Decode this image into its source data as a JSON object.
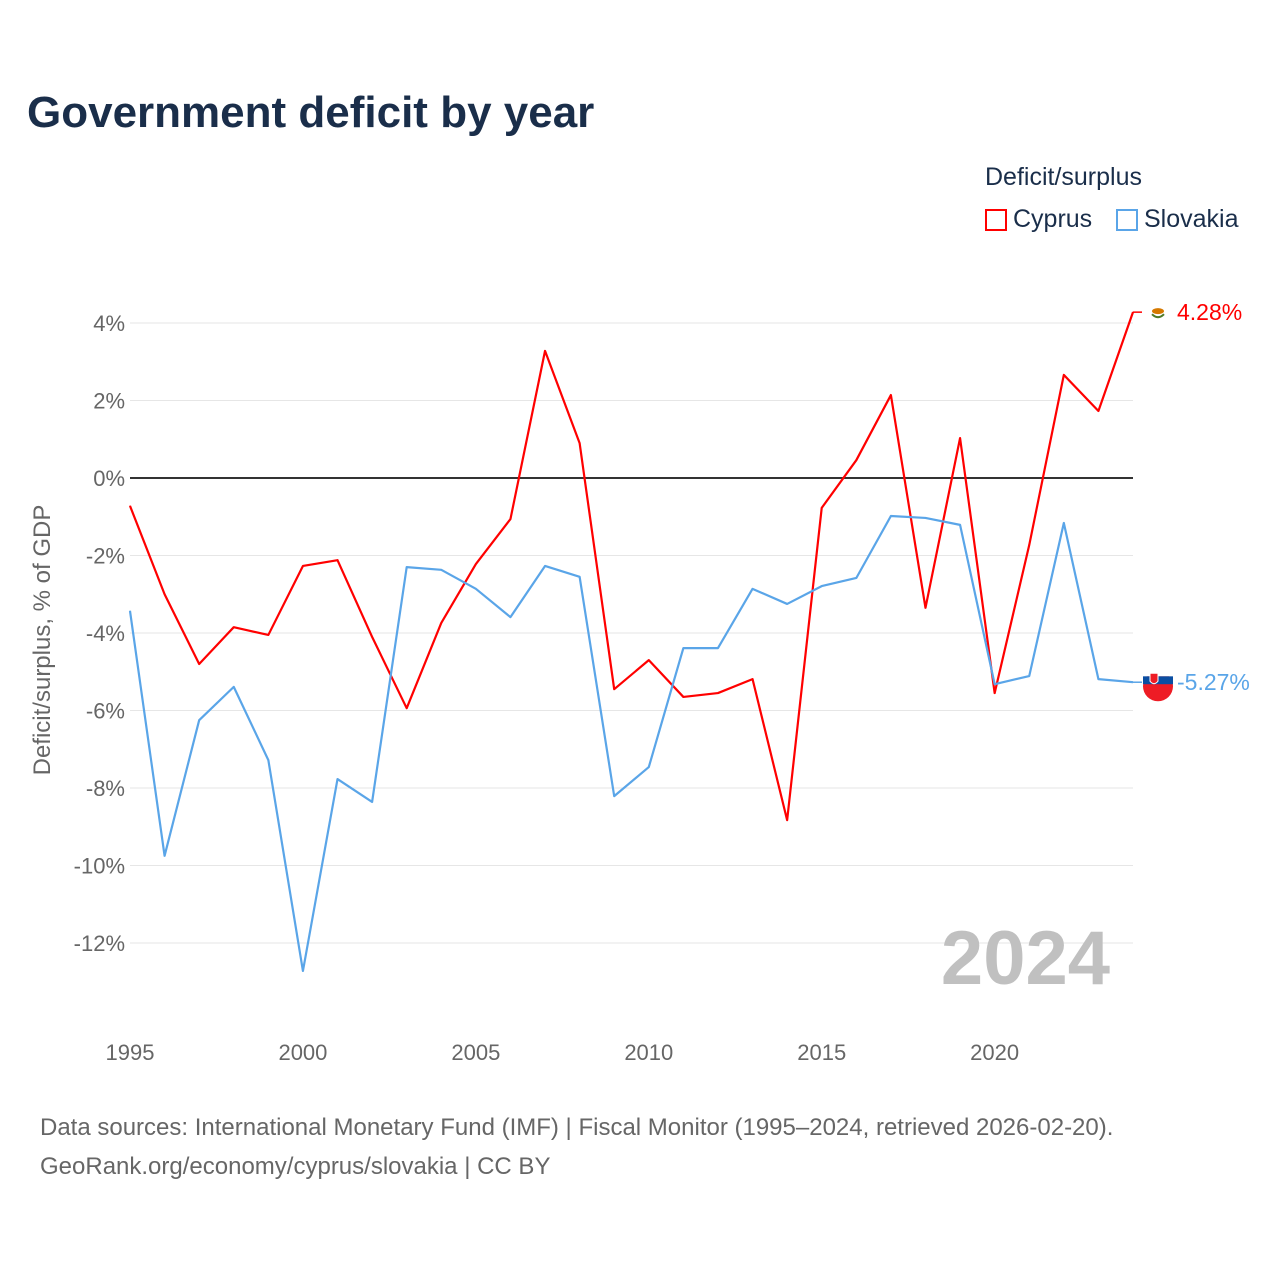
{
  "chart_data": {
    "type": "line",
    "title": "Government deficit by year",
    "ylabel": "Deficit/surplus, % of GDP",
    "xlabel": "",
    "legend_title": "Deficit/surplus",
    "legend_position": "top-right",
    "watermark_year": "2024",
    "ylim": [
      -14,
      4.5
    ],
    "xlim": [
      1995,
      2024
    ],
    "yticks": [
      4,
      2,
      0,
      -2,
      -4,
      -6,
      -8,
      -10,
      -12
    ],
    "ytick_labels": [
      "4%",
      "2%",
      "0%",
      "-2%",
      "-4%",
      "-6%",
      "-8%",
      "-10%",
      "-12%"
    ],
    "xticks": [
      1995,
      2000,
      2005,
      2010,
      2015,
      2020
    ],
    "xtick_labels": [
      "1995",
      "2000",
      "2005",
      "2010",
      "2015",
      "2020"
    ],
    "x": [
      1995,
      1996,
      1997,
      1998,
      1999,
      2000,
      2001,
      2002,
      2003,
      2004,
      2005,
      2006,
      2007,
      2008,
      2009,
      2010,
      2011,
      2012,
      2013,
      2014,
      2015,
      2016,
      2017,
      2018,
      2019,
      2020,
      2021,
      2022,
      2023,
      2024
    ],
    "series": [
      {
        "name": "Cyprus",
        "color": "#ff0000",
        "end_label": "4.28%",
        "values": [
          -0.72,
          -3.0,
          -4.8,
          -3.85,
          -4.05,
          -2.27,
          -2.12,
          -4.1,
          -5.94,
          -3.74,
          -2.22,
          -1.06,
          3.28,
          0.9,
          -5.45,
          -4.7,
          -5.65,
          -5.55,
          -5.19,
          -8.83,
          -0.77,
          0.46,
          2.14,
          -3.35,
          1.03,
          -5.55,
          -1.73,
          2.66,
          1.73,
          4.28
        ]
      },
      {
        "name": "Slovakia",
        "color": "#5aa5e8",
        "end_label": "-5.27%",
        "values": [
          -3.43,
          -9.75,
          -6.25,
          -5.39,
          -7.28,
          -12.72,
          -7.77,
          -8.36,
          -2.3,
          -2.37,
          -2.86,
          -3.59,
          -2.27,
          -2.55,
          -8.21,
          -7.46,
          -4.39,
          -4.39,
          -2.86,
          -3.25,
          -2.79,
          -2.58,
          -0.98,
          -1.03,
          -1.21,
          -5.32,
          -5.11,
          -1.16,
          -5.19,
          -5.27
        ]
      }
    ]
  },
  "source_line1": "Data sources: International Monetary Fund (IMF) | Fiscal Monitor (1995–2024, retrieved 2026-02-20).",
  "source_line2": "GeoRank.org/economy/cyprus/slovakia | CC BY"
}
